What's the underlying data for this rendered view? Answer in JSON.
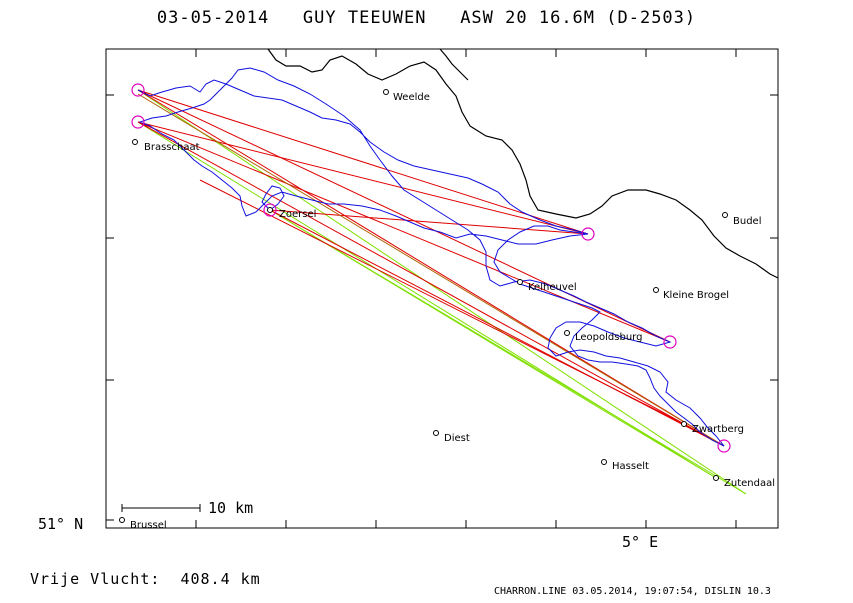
{
  "header": {
    "title": "03-05-2014   GUY TEEUWEN   ASW 20 16.6M (D-2503)"
  },
  "footer": {
    "distance_label": "Vrije Vlucht:",
    "distance_value": "408.4 km",
    "credits": "CHARRON.LINE 03.05.2014, 19:07:54, DISLIN 10.3"
  },
  "axes": {
    "lat_label": "51° N",
    "lon_label": "5° E",
    "scale_label": "10 km"
  },
  "places": [
    {
      "name": "Weelde"
    },
    {
      "name": "Brasschaat"
    },
    {
      "name": "Zoersel"
    },
    {
      "name": "Budel"
    },
    {
      "name": "Kelheuvel"
    },
    {
      "name": "Kleine Brogel"
    },
    {
      "name": "Leopoldsburg"
    },
    {
      "name": "Zwartberg"
    },
    {
      "name": "Diest"
    },
    {
      "name": "Hasselt"
    },
    {
      "name": "Zutendaal"
    },
    {
      "name": "Brussel"
    }
  ],
  "colors": {
    "track": "#1010e0",
    "task": "#e00000",
    "declared": "#80e000",
    "turnpoint": "#e000c0",
    "border": "#000000",
    "frame": "#000000"
  }
}
